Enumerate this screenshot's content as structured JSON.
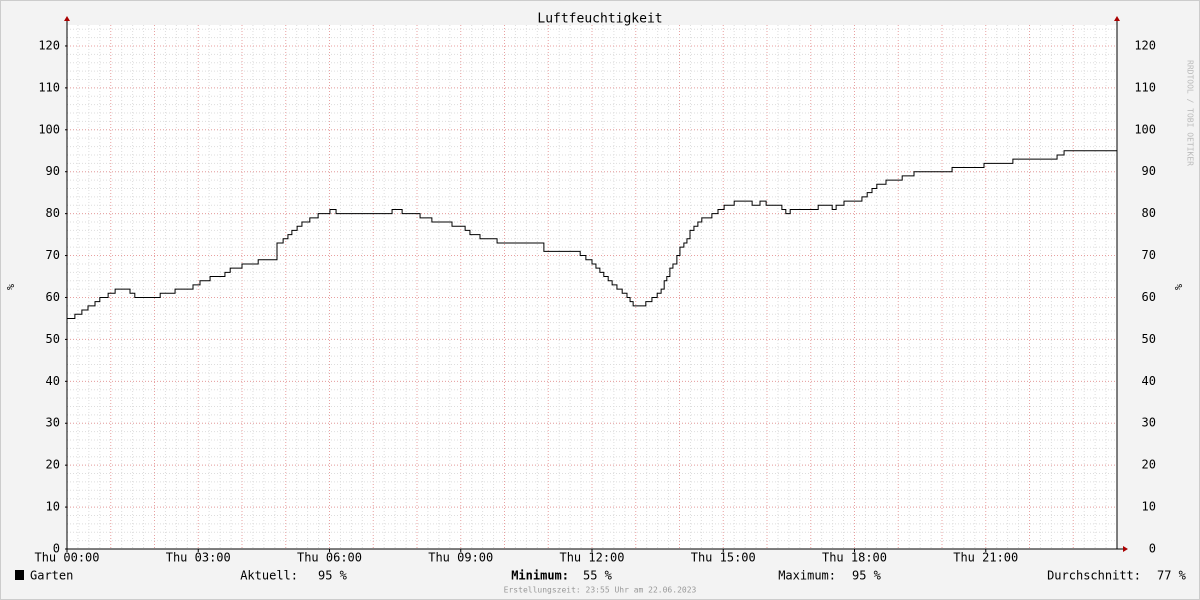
{
  "chart_data": {
    "type": "line",
    "title": "Luftfeuchtigkeit",
    "watermark": "RRDTOOL / TOBI OETIKER",
    "y_label": "%",
    "y2_label": "%",
    "step": true,
    "grid": true,
    "series": [
      {
        "name": "Garten",
        "color": "#000000",
        "x": [
          0,
          0.18,
          0.34,
          0.48,
          0.64,
          0.75,
          0.94,
          1.1,
          1.44,
          1.55,
          2.13,
          2.47,
          2.88,
          3.04,
          3.27,
          3.61,
          3.73,
          4.0,
          4.37,
          4.8,
          4.94,
          5.05,
          5.14,
          5.26,
          5.37,
          5.55,
          5.74,
          6.01,
          6.15,
          7.43,
          7.66,
          8.07,
          8.34,
          8.8,
          9.1,
          9.21,
          9.44,
          9.83,
          10.9,
          11.73,
          11.86,
          12.0,
          12.09,
          12.18,
          12.27,
          12.37,
          12.46,
          12.57,
          12.69,
          12.8,
          12.87,
          12.94,
          13.23,
          13.37,
          13.49,
          13.58,
          13.65,
          13.71,
          13.78,
          13.85,
          13.94,
          14.01,
          14.1,
          14.17,
          14.24,
          14.33,
          14.42,
          14.51,
          14.74,
          14.88,
          15.02,
          15.25,
          15.66,
          15.84,
          15.98,
          16.34,
          16.43,
          16.53,
          17.17,
          17.49,
          17.58,
          17.76,
          18.17,
          18.29,
          18.4,
          18.51,
          18.72,
          19.09,
          19.36,
          20.23,
          20.96,
          21.62,
          22.63,
          22.79,
          24
        ],
        "values": [
          55,
          56,
          57,
          58,
          59,
          60,
          61,
          62,
          61,
          60,
          61,
          62,
          63,
          64,
          65,
          66,
          67,
          68,
          69,
          73,
          74,
          75,
          76,
          77,
          78,
          79,
          80,
          81,
          80,
          81,
          80,
          79,
          78,
          77,
          76,
          75,
          74,
          73,
          71,
          70,
          69,
          68,
          67,
          66,
          65,
          64,
          63,
          62,
          61,
          60,
          59,
          58,
          59,
          60,
          61,
          62,
          64,
          65,
          67,
          68,
          70,
          72,
          73,
          74,
          76,
          77,
          78,
          79,
          80,
          81,
          82,
          83,
          82,
          83,
          82,
          81,
          80,
          81,
          82,
          81,
          82,
          83,
          84,
          85,
          86,
          87,
          88,
          89,
          90,
          91,
          92,
          93,
          94,
          95,
          95
        ]
      }
    ],
    "xlim": [
      0,
      24
    ],
    "xticks": [
      {
        "value": 0,
        "label": "Thu 00:00"
      },
      {
        "value": 3,
        "label": "Thu 03:00"
      },
      {
        "value": 6,
        "label": "Thu 06:00"
      },
      {
        "value": 9,
        "label": "Thu 09:00"
      },
      {
        "value": 12,
        "label": "Thu 12:00"
      },
      {
        "value": 15,
        "label": "Thu 15:00"
      },
      {
        "value": 18,
        "label": "Thu 18:00"
      },
      {
        "value": 21,
        "label": "Thu 21:00"
      }
    ],
    "ylim": [
      0,
      125
    ],
    "yticks": [
      0,
      10,
      20,
      30,
      40,
      50,
      60,
      70,
      80,
      90,
      100,
      110,
      120
    ],
    "stats": {
      "labels": [
        "Aktuell:",
        "Minimum:",
        "Maximum:",
        "Durchschnitt:"
      ],
      "values": [
        95,
        55,
        95,
        77
      ],
      "value_labels": [
        "95 %",
        "55 %",
        "95 %",
        "77 %"
      ]
    },
    "footer": "Erstellungszeit: 23:55 Uhr am 22.06.2023"
  }
}
